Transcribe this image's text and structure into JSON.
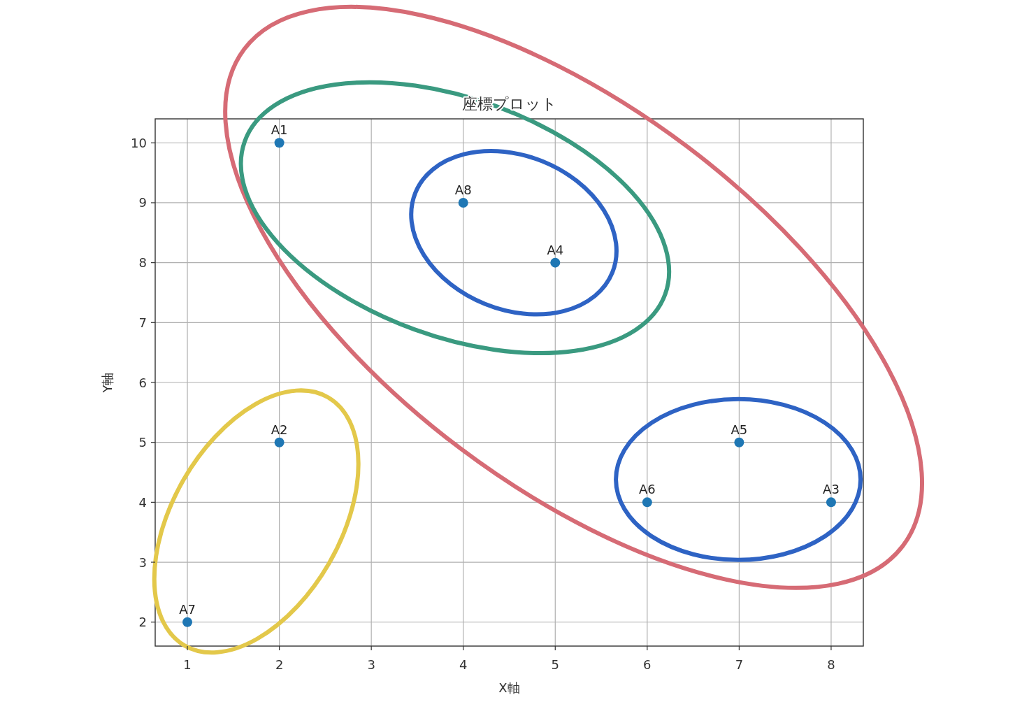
{
  "chart_data": {
    "type": "scatter",
    "title": "座標プロット",
    "xlabel": "X軸",
    "ylabel": "Y軸",
    "series": [
      {
        "color": "#1f77b4",
        "x": [
          2,
          2,
          8,
          5,
          7,
          6,
          1,
          4
        ],
        "values": [
          10,
          5,
          4,
          8,
          5,
          4,
          2,
          9
        ]
      }
    ],
    "annotations": [
      {
        "text": "A1",
        "x": 2,
        "y": 10
      },
      {
        "text": "A2",
        "x": 2,
        "y": 5
      },
      {
        "text": "A3",
        "x": 8,
        "y": 4
      },
      {
        "text": "A4",
        "x": 5,
        "y": 8
      },
      {
        "text": "A5",
        "x": 7,
        "y": 5
      },
      {
        "text": "A6",
        "x": 6,
        "y": 4
      },
      {
        "text": "A7",
        "x": 1,
        "y": 2
      },
      {
        "text": "A8",
        "x": 4,
        "y": 9
      }
    ],
    "xlim": [
      0.65,
      8.35
    ],
    "ylim": [
      1.6,
      10.4
    ],
    "xticks": [
      1,
      2,
      3,
      4,
      5,
      6,
      7,
      8
    ],
    "yticks": [
      2,
      3,
      4,
      5,
      6,
      7,
      8,
      9,
      10
    ],
    "grid": true,
    "marker": "circle"
  }
}
